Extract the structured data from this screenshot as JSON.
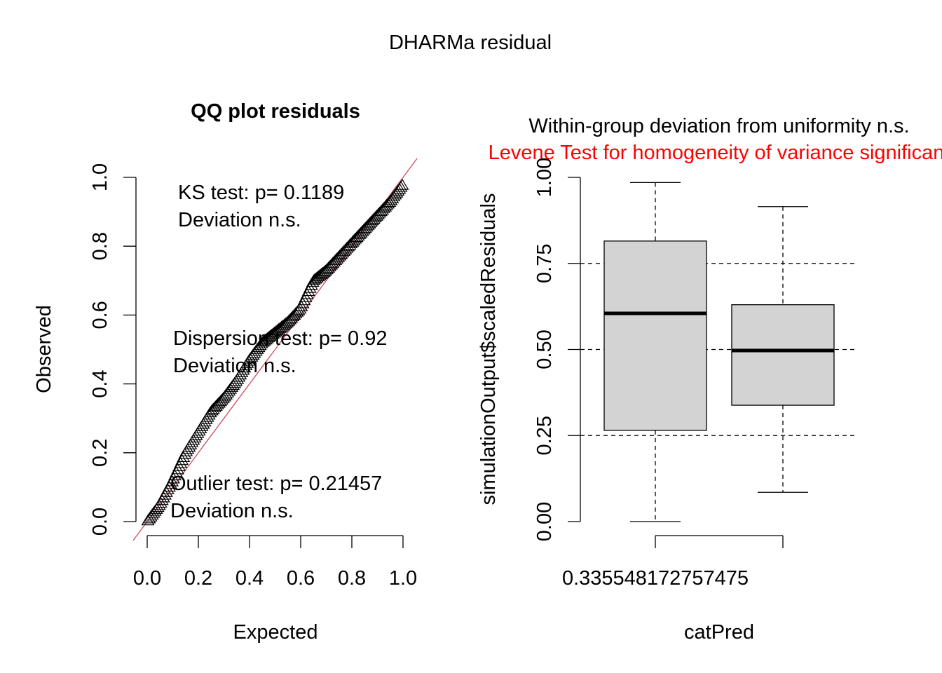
{
  "figure_title": "DHARMa residual",
  "colors": {
    "reference_line": "#d1495b",
    "levene_text": "#ff0000",
    "box_fill": "#d3d3d3",
    "ink": "#000000"
  },
  "chart_data": [
    {
      "type": "scatter",
      "title": "QQ plot residuals",
      "xlabel": "Expected",
      "ylabel": "Observed",
      "xlim": [
        0,
        1
      ],
      "ylim": [
        0,
        1
      ],
      "x_ticks": [
        "0.0",
        "0.2",
        "0.4",
        "0.6",
        "0.8",
        "1.0"
      ],
      "y_ticks": [
        "0.0",
        "0.2",
        "0.4",
        "0.6",
        "0.8",
        "1.0"
      ],
      "marker": "open-triangle",
      "reference_line": {
        "from": [
          0,
          0
        ],
        "to": [
          1,
          1
        ]
      },
      "quantile_curve": {
        "x": [
          0.0,
          0.05,
          0.1,
          0.15,
          0.2,
          0.25,
          0.3,
          0.35,
          0.4,
          0.45,
          0.5,
          0.55,
          0.6,
          0.65,
          0.7,
          0.75,
          0.8,
          0.85,
          0.9,
          0.95,
          1.0
        ],
        "y": [
          0.0,
          0.05,
          0.12,
          0.2,
          0.26,
          0.32,
          0.36,
          0.41,
          0.47,
          0.52,
          0.55,
          0.58,
          0.62,
          0.7,
          0.73,
          0.77,
          0.81,
          0.85,
          0.89,
          0.93,
          0.98
        ]
      },
      "annotations": [
        {
          "lines": [
            "KS test: p= 0.1189",
            "Deviation  n.s."
          ]
        },
        {
          "lines": [
            "Dispersion test: p= 0.92",
            "Deviation  n.s."
          ]
        },
        {
          "lines": [
            "Outlier test: p= 0.21457",
            "Deviation  n.s."
          ]
        }
      ]
    },
    {
      "type": "box",
      "title_lines": [
        {
          "text": "Within-group deviation from uniformity n.s.",
          "color": "#000000"
        },
        {
          "text": "Levene Test for homogeneity of variance significant",
          "color": "#ff0000"
        }
      ],
      "xlabel": "catPred",
      "ylabel": "simulationOutput$scaledResiduals",
      "ylim": [
        0,
        1
      ],
      "y_ticks": [
        "0.00",
        "0.25",
        "0.50",
        "0.75",
        "1.00"
      ],
      "reference_lines": [
        0.25,
        0.5,
        0.75
      ],
      "category_labels": [
        "0.335548172757475",
        ""
      ],
      "boxes": [
        {
          "whisker_low": 0.0,
          "q1": 0.265,
          "median": 0.605,
          "q3": 0.815,
          "whisker_high": 0.985
        },
        {
          "whisker_low": 0.085,
          "q1": 0.338,
          "median": 0.497,
          "q3": 0.63,
          "whisker_high": 0.915
        }
      ]
    }
  ]
}
